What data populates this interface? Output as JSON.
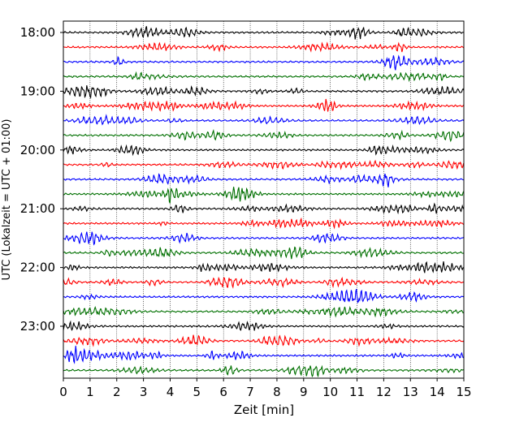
{
  "chart_data": {
    "type": "line",
    "title": "",
    "xlabel": "Zeit  [min]",
    "ylabel": "UTC (Lokalzeit = UTC + 01:00)",
    "xlim": [
      0,
      15
    ],
    "xticks": [
      "0",
      "1",
      "2",
      "3",
      "4",
      "5",
      "6",
      "7",
      "8",
      "9",
      "10",
      "11",
      "12",
      "13",
      "14",
      "15"
    ],
    "yticks": [
      "18:00",
      "19:00",
      "20:00",
      "21:00",
      "22:00",
      "23:00"
    ],
    "grid": "vertical dotted at each minute",
    "trace_start": "18:00",
    "trace_interval_minutes": 15,
    "trace_count": 24,
    "colors": [
      "#000000",
      "#ff0000",
      "#0000ff",
      "#007000"
    ]
  }
}
